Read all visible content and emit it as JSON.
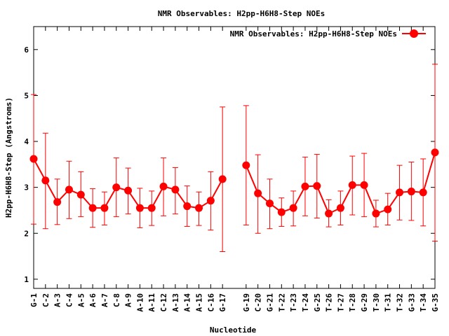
{
  "chart_data": {
    "type": "line",
    "title": "NMR Observables: H2pp-H6H8-Step NOEs",
    "xlabel": "Nucleotide",
    "ylabel": "H2pp-H6H8-Step (Angstroms)",
    "ylim": [
      0.8,
      6.5
    ],
    "yticks": [
      1,
      2,
      3,
      4,
      5,
      6
    ],
    "legend": {
      "position": "top-right",
      "label": "NMR Observables: H2pp-H6H8-Step NOEs"
    },
    "colors": {
      "series": "#ff0000",
      "axis": "#000000"
    },
    "categories": [
      "G-1",
      "C-2",
      "A-3",
      "C-4",
      "A-5",
      "A-6",
      "A-7",
      "C-8",
      "A-9",
      "A-10",
      "A-11",
      "C-12",
      "A-13",
      "A-14",
      "A-15",
      "C-16",
      "G-17",
      "G-19",
      "C-20",
      "G-21",
      "T-22",
      "T-23",
      "T-24",
      "G-25",
      "T-26",
      "T-27",
      "T-28",
      "G-29",
      "T-30",
      "T-31",
      "T-32",
      "G-33",
      "T-34",
      "G-35"
    ],
    "positions": [
      1,
      2,
      3,
      4,
      5,
      6,
      7,
      8,
      9,
      10,
      11,
      12,
      13,
      14,
      15,
      16,
      17,
      19,
      20,
      21,
      22,
      23,
      24,
      25,
      26,
      27,
      28,
      29,
      30,
      31,
      32,
      33,
      34,
      35
    ],
    "segments": [
      [
        0,
        16
      ],
      [
        17,
        33
      ]
    ],
    "series": [
      {
        "name": "NMR Observables: H2pp-H6H8-Step NOEs",
        "values": [
          3.62,
          3.15,
          2.68,
          2.95,
          2.84,
          2.55,
          2.55,
          3.0,
          2.93,
          2.55,
          2.55,
          3.02,
          2.95,
          2.59,
          2.55,
          2.71,
          3.18,
          3.48,
          2.87,
          2.65,
          2.46,
          2.55,
          3.02,
          3.03,
          2.43,
          2.55,
          3.05,
          3.05,
          2.43,
          2.52,
          2.89,
          2.91,
          2.89,
          3.76
        ],
        "error_low": [
          2.2,
          2.1,
          2.19,
          2.32,
          2.36,
          2.13,
          2.18,
          2.36,
          2.42,
          2.12,
          2.17,
          2.38,
          2.42,
          2.15,
          2.17,
          2.07,
          1.6,
          2.18,
          2.0,
          2.1,
          2.15,
          2.16,
          2.38,
          2.33,
          2.14,
          2.18,
          2.4,
          2.36,
          2.14,
          2.18,
          2.29,
          2.28,
          2.16,
          1.83
        ],
        "error_high": [
          5.02,
          4.18,
          3.18,
          3.57,
          3.34,
          2.97,
          2.9,
          3.64,
          3.42,
          2.98,
          2.92,
          3.64,
          3.43,
          3.03,
          2.9,
          3.34,
          4.75,
          4.78,
          3.71,
          3.18,
          2.77,
          2.92,
          3.66,
          3.72,
          2.73,
          2.92,
          3.68,
          3.74,
          2.72,
          2.87,
          3.48,
          3.55,
          3.62,
          5.68
        ]
      }
    ]
  }
}
